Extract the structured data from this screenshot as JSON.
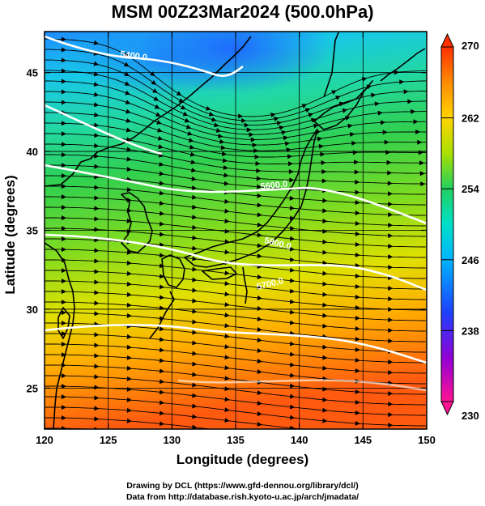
{
  "title": "MSM 00Z23Mar2024 (500.0hPa)",
  "axes": {
    "xlabel": "Longitude (degrees)",
    "ylabel": "Latitude  (degrees)",
    "x_ticks": [
      "120",
      "125",
      "130",
      "135",
      "140",
      "145",
      "150"
    ],
    "y_ticks": [
      "25",
      "30",
      "35",
      "40",
      "45"
    ],
    "x_range": [
      120,
      150
    ],
    "y_range": [
      22.4,
      47.6
    ]
  },
  "colorbar": {
    "min": 230,
    "max": 270,
    "tick_labels": [
      "270",
      "262",
      "254",
      "246",
      "238",
      "230"
    ],
    "colors": [
      "#ff1493",
      "#9400d3",
      "#1e40ff",
      "#00b4ff",
      "#00e0c8",
      "#22d060",
      "#a8e000",
      "#ffd400",
      "#ff8c00",
      "#ff3000"
    ]
  },
  "contours": {
    "color": "#ffffff",
    "labels": [
      "5400.0",
      "5600.0",
      "5800.0",
      "5700.0"
    ]
  },
  "credits": {
    "line1": "Drawing by DCL (https://www.gfd-dennou.org/library/dcl/)",
    "line2": "Data from http://database.rish.kyoto-u.ac.jp/arch/jmadata/"
  }
}
